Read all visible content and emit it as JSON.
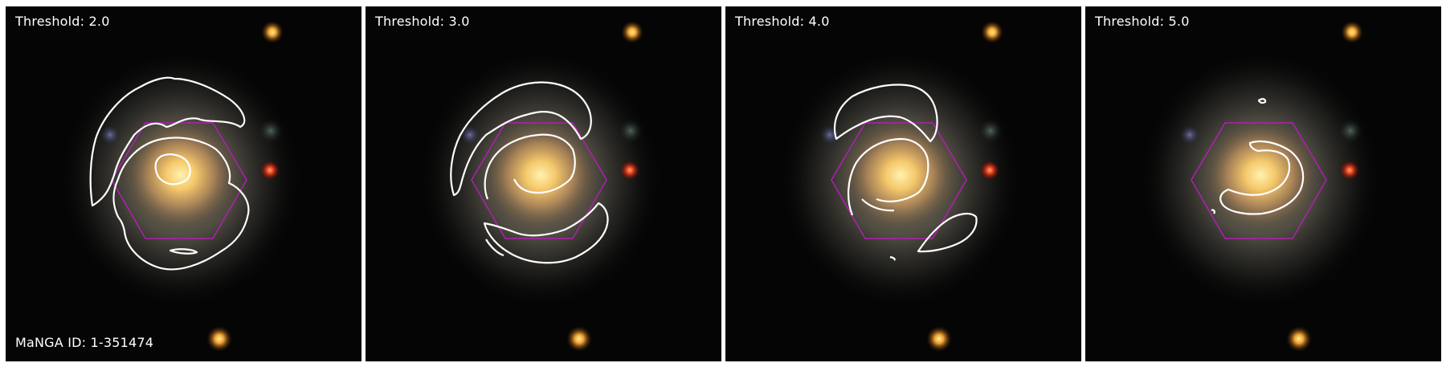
{
  "manga_id_label": "MaNGA ID: 1-351474",
  "panels": [
    {
      "threshold_label": "Threshold: 2.0"
    },
    {
      "threshold_label": "Threshold: 3.0"
    },
    {
      "threshold_label": "Threshold: 4.0"
    },
    {
      "threshold_label": "Threshold: 5.0"
    }
  ],
  "colors": {
    "background": "#050505",
    "contour": "#ffffff",
    "ifu_hexagon": "#b020b0",
    "galaxy_core": "#f5c86a",
    "galaxy_disk": "#9a9078",
    "foreground_star_red": "#e0381c",
    "foreground_star_orange": "#f0a030"
  }
}
